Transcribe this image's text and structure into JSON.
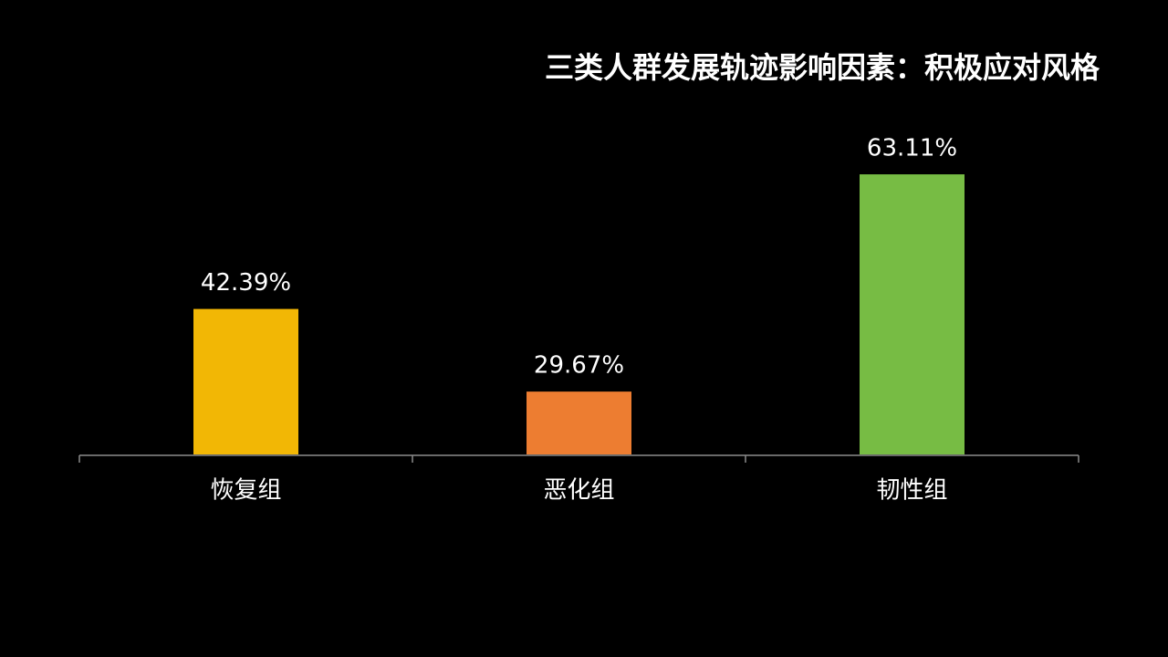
{
  "chart_data": {
    "type": "bar",
    "title": "三类人群发展轨迹影响因素：积极应对风格",
    "categories": [
      "恢复组",
      "恶化组",
      "韧性组"
    ],
    "values": [
      42.39,
      29.67,
      63.11
    ],
    "value_labels": [
      "42.39%",
      "29.67%",
      "63.11%"
    ],
    "colors": [
      "#f2b705",
      "#ed7d31",
      "#77bc44"
    ],
    "ylim": [
      20,
      70
    ]
  }
}
